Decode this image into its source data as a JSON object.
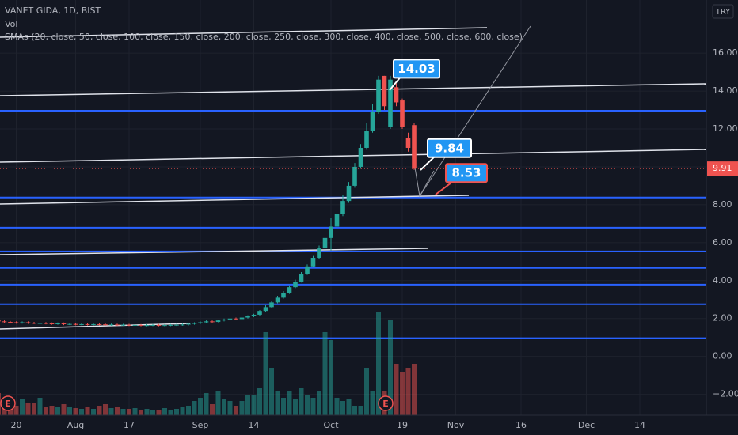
{
  "header": {
    "symbol": "VANET GIDA, 1D, BIST",
    "volume_label": "Vol",
    "indicator_label": "SMAs (20, close, 50, close, 100, close, 150, close, 200, close, 250, close, 300, close, 400, close, 500, close, 600, close)",
    "currency": "TRY"
  },
  "events": [
    "E",
    "E"
  ],
  "chart_data": {
    "type": "candlestick",
    "categories": [
      null,
      null,
      null,
      "20",
      null,
      null,
      null,
      null,
      null,
      null,
      null,
      null,
      null,
      "Aug",
      null,
      null,
      null,
      null,
      null,
      null,
      null,
      null,
      "17",
      null,
      null,
      null,
      null,
      null,
      null,
      null,
      null,
      null,
      null,
      null,
      "Sep",
      null,
      null,
      null,
      null,
      null,
      null,
      null,
      null,
      "14",
      null,
      null,
      null,
      null,
      null,
      null,
      null,
      null,
      null,
      null,
      null,
      null,
      "Oct",
      null,
      null,
      null,
      null,
      null,
      null,
      null,
      null,
      null,
      null,
      null,
      "19",
      null,
      null,
      null,
      null,
      null,
      null,
      null,
      null,
      "Nov",
      null,
      null,
      null,
      null,
      null,
      null,
      null,
      null,
      null,
      null,
      "16",
      null,
      null,
      null,
      null,
      null,
      null,
      null,
      null,
      null,
      null,
      "Dec",
      null,
      null,
      null,
      null,
      null,
      null,
      null,
      null,
      "14",
      null,
      null,
      null,
      null,
      null,
      null,
      null,
      null,
      null,
      null
    ],
    "open": [
      1.9,
      1.85,
      1.82,
      1.8,
      1.78,
      1.8,
      1.77,
      1.75,
      1.76,
      1.74,
      1.72,
      1.74,
      1.7,
      1.71,
      1.69,
      1.7,
      1.68,
      1.7,
      1.69,
      1.67,
      1.68,
      1.66,
      1.67,
      1.65,
      1.66,
      1.64,
      1.65,
      1.66,
      1.64,
      1.65,
      1.66,
      1.67,
      1.68,
      1.72,
      1.76,
      1.8,
      1.85,
      1.82,
      1.9,
      1.95,
      2.0,
      1.97,
      2.05,
      2.12,
      2.2,
      2.4,
      2.6,
      2.85,
      3.1,
      3.35,
      3.65,
      3.95,
      4.35,
      4.75,
      5.2,
      5.7,
      6.25,
      6.85,
      7.5,
      8.2,
      9.0,
      10.0,
      11.0,
      11.9,
      12.9,
      14.8,
      12.1,
      14.2,
      13.5,
      11.5,
      12.2,
      null,
      null,
      null,
      null,
      null,
      null,
      null,
      null,
      null,
      null,
      null,
      null,
      null,
      null,
      null,
      null,
      null,
      null,
      null,
      null,
      null,
      null,
      null,
      null,
      null,
      null,
      null,
      null,
      null,
      null,
      null,
      null,
      null,
      null,
      null,
      null,
      null,
      null,
      null,
      null,
      null,
      null,
      null,
      null,
      null,
      null,
      null,
      null
    ],
    "high": [
      1.95,
      1.9,
      1.87,
      1.85,
      1.85,
      1.85,
      1.82,
      1.81,
      1.81,
      1.79,
      1.79,
      1.79,
      1.76,
      1.76,
      1.75,
      1.75,
      1.75,
      1.75,
      1.74,
      1.73,
      1.73,
      1.72,
      1.72,
      1.71,
      1.71,
      1.7,
      1.71,
      1.71,
      1.7,
      1.71,
      1.72,
      1.73,
      1.77,
      1.8,
      1.85,
      1.9,
      1.9,
      1.95,
      2.0,
      2.05,
      2.05,
      2.1,
      2.17,
      2.25,
      2.45,
      2.7,
      2.95,
      3.2,
      3.45,
      3.75,
      4.05,
      4.45,
      4.85,
      5.3,
      5.85,
      6.5,
      7.3,
      7.7,
      8.5,
      9.2,
      10.2,
      11.2,
      12.3,
      13.3,
      14.8,
      14.8,
      14.8,
      14.4,
      13.6,
      11.8,
      12.3,
      null,
      null,
      null,
      null,
      null,
      null,
      null,
      null,
      null,
      null,
      null,
      null,
      null,
      null,
      null,
      null,
      null,
      null,
      null,
      null,
      null,
      null,
      null,
      null,
      null,
      null,
      null,
      null,
      null,
      null,
      null,
      null,
      null,
      null,
      null,
      null,
      null,
      null,
      null,
      null,
      null,
      null,
      null,
      null,
      null,
      null,
      null,
      null
    ],
    "low": [
      1.8,
      1.77,
      1.75,
      1.73,
      1.73,
      1.72,
      1.7,
      1.7,
      1.69,
      1.67,
      1.67,
      1.65,
      1.65,
      1.64,
      1.64,
      1.63,
      1.63,
      1.64,
      1.62,
      1.62,
      1.61,
      1.61,
      1.6,
      1.6,
      1.59,
      1.59,
      1.6,
      1.59,
      1.59,
      1.6,
      1.61,
      1.62,
      1.63,
      1.67,
      1.71,
      1.75,
      1.77,
      1.8,
      1.85,
      1.9,
      1.92,
      1.95,
      2.0,
      2.07,
      2.15,
      2.35,
      2.55,
      2.8,
      3.05,
      3.3,
      3.6,
      3.9,
      4.3,
      4.7,
      5.15,
      5.6,
      5.6,
      6.8,
      7.4,
      8.1,
      8.9,
      9.9,
      10.9,
      11.8,
      12.8,
      13.0,
      12.0,
      13.2,
      12.0,
      10.8,
      9.84,
      null,
      null,
      null,
      null,
      null,
      null,
      null,
      null,
      null,
      null,
      null,
      null,
      null,
      null,
      null,
      null,
      null,
      null,
      null,
      null,
      null,
      null,
      null,
      null,
      null,
      null,
      null,
      null,
      null,
      null,
      null,
      null,
      null,
      null,
      null,
      null,
      null,
      null,
      null,
      null,
      null,
      null,
      null,
      null,
      null,
      null,
      null,
      null
    ],
    "close": [
      1.85,
      1.82,
      1.8,
      1.78,
      1.8,
      1.77,
      1.75,
      1.76,
      1.74,
      1.72,
      1.74,
      1.7,
      1.71,
      1.69,
      1.7,
      1.68,
      1.7,
      1.69,
      1.67,
      1.68,
      1.66,
      1.67,
      1.65,
      1.66,
      1.64,
      1.65,
      1.66,
      1.64,
      1.65,
      1.66,
      1.67,
      1.68,
      1.72,
      1.76,
      1.8,
      1.85,
      1.82,
      1.9,
      1.95,
      2.0,
      1.97,
      2.05,
      2.12,
      2.2,
      2.4,
      2.6,
      2.85,
      3.1,
      3.35,
      3.65,
      3.95,
      4.35,
      4.75,
      5.2,
      5.7,
      6.25,
      6.85,
      7.5,
      8.2,
      9.0,
      10.0,
      11.0,
      11.9,
      12.9,
      14.6,
      13.2,
      14.6,
      13.4,
      12.1,
      11.0,
      9.91,
      null,
      null,
      null,
      null,
      null,
      null,
      null,
      null,
      null,
      null,
      null,
      null,
      null,
      null,
      null,
      null,
      null,
      null,
      null,
      null,
      null,
      null,
      null,
      null,
      null,
      null,
      null,
      null,
      null,
      null,
      null,
      null,
      null,
      null,
      null,
      null,
      null,
      null,
      null,
      null,
      null,
      null,
      null,
      null,
      null,
      null,
      null,
      null
    ],
    "volume": [
      28,
      22,
      18,
      12,
      20,
      15,
      16,
      22,
      10,
      12,
      10,
      14,
      10,
      9,
      8,
      10,
      8,
      12,
      14,
      9,
      10,
      8,
      8,
      9,
      7,
      8,
      7,
      6,
      9,
      6,
      8,
      10,
      12,
      18,
      22,
      28,
      14,
      30,
      20,
      18,
      12,
      18,
      25,
      25,
      35,
      105,
      60,
      30,
      22,
      30,
      20,
      35,
      25,
      22,
      30,
      105,
      95,
      22,
      18,
      20,
      12,
      12,
      60,
      30,
      130,
      30,
      120,
      65,
      55,
      60,
      65,
      null,
      null,
      null,
      null,
      null,
      null,
      null,
      null,
      null,
      null,
      null,
      null,
      null,
      null,
      null,
      null,
      null,
      null,
      null,
      null,
      null,
      null,
      null,
      null,
      null,
      null,
      null,
      null,
      null,
      null,
      null,
      null,
      null,
      null,
      null,
      null,
      null,
      null,
      null,
      null,
      null,
      null,
      null,
      null,
      null,
      null,
      null,
      null
    ],
    "up_color": "#26a69a",
    "down_color": "#ef5350",
    "ylim": [
      -3.1,
      18.8
    ],
    "yticks": [
      {
        "value": 16,
        "label": "16.00"
      },
      {
        "value": 14,
        "label": "14.00"
      },
      {
        "value": 12,
        "label": "12.00"
      },
      {
        "value": 10,
        "label": "10.00"
      },
      {
        "value": 8,
        "label": "8.00"
      },
      {
        "value": 6,
        "label": "6.00"
      },
      {
        "value": 4,
        "label": "4.00"
      },
      {
        "value": 2,
        "label": "2.00"
      },
      {
        "value": 0,
        "label": "0.00"
      },
      {
        "value": -2,
        "label": "−2.00"
      }
    ],
    "grid": true,
    "last_price": 9.91,
    "horizontal_lines": [
      12.96,
      8.38,
      6.79,
      5.54,
      4.67,
      3.79,
      2.75,
      0.96
    ],
    "horizontal_line_color": "#2962ff",
    "callouts": [
      14.03,
      9.84,
      8.53
    ]
  }
}
